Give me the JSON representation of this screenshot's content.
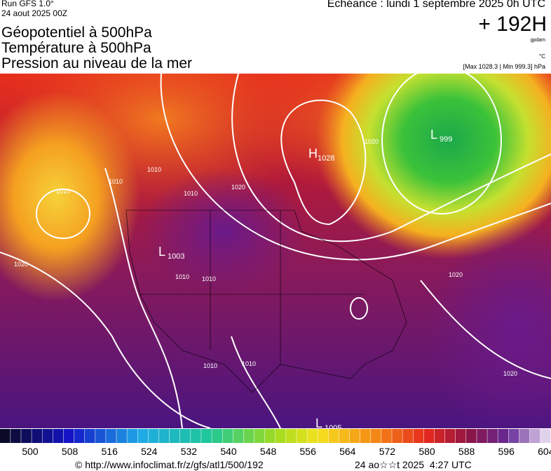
{
  "header": {
    "run": "Run GFS 1.0°",
    "date": "24 aout 2025 00Z",
    "titles": [
      "Géopotentiel à 500hPa",
      "Température à 500hPa",
      "Pression au niveau de la mer"
    ],
    "echeance": "Echéance : lundi 1 septembre 2025 0h UTC",
    "lead": "+ 192H",
    "unit_geo": "gpdam",
    "unit_temp": "°C",
    "range": "[Max 1028.3 | Min 999.3] hPa"
  },
  "map": {
    "centers": [
      {
        "letter": "H",
        "value": "1028"
      },
      {
        "letter": "L",
        "value": "999"
      },
      {
        "letter": "L",
        "value": "1003"
      },
      {
        "letter": "L",
        "value": "1005"
      }
    ],
    "isobar_labels": [
      "1010",
      "1010",
      "1010",
      "1010",
      "1020",
      "1020",
      "1020",
      "1020",
      "1010",
      "1010",
      "1010",
      "1010",
      "1020"
    ]
  },
  "colorbar": {
    "labels": [
      "500",
      "508",
      "516",
      "524",
      "532",
      "540",
      "548",
      "556",
      "564",
      "572",
      "580",
      "588",
      "596",
      "604"
    ]
  },
  "footer": {
    "url": "© http://www.infoclimat.fr/z/gfs/atl1/500/192",
    "time": "24 ao☆☆t 2025  4:27 UTC"
  }
}
